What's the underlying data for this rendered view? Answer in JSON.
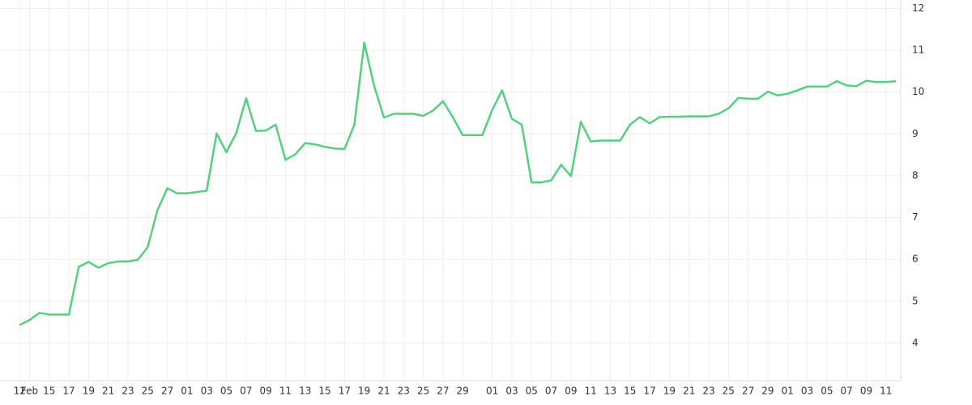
{
  "chart_data": {
    "type": "line",
    "x": [
      0,
      1,
      2,
      3,
      4,
      5,
      6,
      7,
      8,
      9,
      10,
      11,
      12,
      13,
      14,
      15,
      16,
      17,
      18,
      19,
      20,
      21,
      22,
      23,
      24,
      25,
      26,
      27,
      28,
      29,
      30,
      31,
      32,
      33,
      34,
      35,
      36,
      37,
      38,
      39,
      40,
      41,
      42,
      43,
      44,
      45,
      46,
      47,
      48,
      49,
      50,
      51,
      52,
      53,
      54,
      55,
      56,
      57,
      58,
      59,
      60,
      61,
      62,
      63,
      64,
      65,
      66,
      67,
      68,
      69,
      70,
      71,
      72,
      73,
      74,
      75,
      76,
      77,
      78,
      79,
      80,
      81,
      82,
      83,
      84,
      85,
      86,
      87,
      88,
      89
    ],
    "series": [
      {
        "color": "#55cf80",
        "values": [
          4.43,
          4.55,
          4.72,
          4.68,
          4.68,
          4.68,
          5.82,
          5.94,
          5.8,
          5.91,
          5.95,
          5.95,
          5.99,
          6.29,
          7.18,
          7.7,
          7.58,
          7.58,
          7.61,
          7.64,
          9.01,
          8.56,
          9.02,
          9.85,
          9.07,
          9.08,
          9.22,
          8.38,
          8.51,
          8.78,
          8.75,
          8.69,
          8.65,
          8.64,
          9.22,
          11.18,
          10.15,
          9.39,
          9.48,
          9.48,
          9.48,
          9.43,
          9.56,
          9.78,
          9.4,
          8.97,
          8.97,
          8.97,
          9.57,
          10.04,
          9.36,
          9.22,
          7.84,
          7.84,
          7.89,
          8.26,
          7.99,
          9.29,
          8.82,
          8.84,
          8.84,
          8.84,
          9.22,
          9.4,
          9.25,
          9.4,
          9.41,
          9.41,
          9.42,
          9.42,
          9.42,
          9.48,
          9.61,
          9.86,
          9.84,
          9.84,
          10.01,
          9.92,
          9.96,
          10.04,
          10.13,
          10.13,
          10.13,
          10.26,
          10.16,
          10.14,
          10.27,
          10.24,
          10.24,
          10.26
        ]
      }
    ],
    "xlim": [
      -2,
      89.5
    ],
    "xticks": [
      {
        "value": 0,
        "label": "12"
      },
      {
        "value": 1,
        "label": "Feb"
      },
      {
        "value": 3,
        "label": "15"
      },
      {
        "value": 5,
        "label": "17"
      },
      {
        "value": 7,
        "label": "19"
      },
      {
        "value": 9,
        "label": "21"
      },
      {
        "value": 11,
        "label": "23"
      },
      {
        "value": 13,
        "label": "25"
      },
      {
        "value": 15,
        "label": "27"
      },
      {
        "value": 17,
        "label": "01"
      },
      {
        "value": 19,
        "label": "03"
      },
      {
        "value": 21,
        "label": "05"
      },
      {
        "value": 23,
        "label": "07"
      },
      {
        "value": 25,
        "label": "09"
      },
      {
        "value": 27,
        "label": "11"
      },
      {
        "value": 29,
        "label": "13"
      },
      {
        "value": 31,
        "label": "15"
      },
      {
        "value": 33,
        "label": "17"
      },
      {
        "value": 35,
        "label": "19"
      },
      {
        "value": 37,
        "label": "21"
      },
      {
        "value": 39,
        "label": "23"
      },
      {
        "value": 41,
        "label": "25"
      },
      {
        "value": 43,
        "label": "27"
      },
      {
        "value": 45,
        "label": "29"
      },
      {
        "value": 48,
        "label": "01"
      },
      {
        "value": 50,
        "label": "03"
      },
      {
        "value": 52,
        "label": "05"
      },
      {
        "value": 54,
        "label": "07"
      },
      {
        "value": 56,
        "label": "09"
      },
      {
        "value": 58,
        "label": "11"
      },
      {
        "value": 60,
        "label": "13"
      },
      {
        "value": 62,
        "label": "15"
      },
      {
        "value": 64,
        "label": "17"
      },
      {
        "value": 66,
        "label": "19"
      },
      {
        "value": 68,
        "label": "21"
      },
      {
        "value": 70,
        "label": "23"
      },
      {
        "value": 72,
        "label": "25"
      },
      {
        "value": 74,
        "label": "27"
      },
      {
        "value": 76,
        "label": "29"
      },
      {
        "value": 78,
        "label": "01"
      },
      {
        "value": 80,
        "label": "03"
      },
      {
        "value": 82,
        "label": "05"
      },
      {
        "value": 84,
        "label": "07"
      },
      {
        "value": 86,
        "label": "09"
      },
      {
        "value": 88,
        "label": "11"
      }
    ],
    "ylim": [
      3.1,
      12.2
    ],
    "yticks": [
      4,
      5,
      6,
      7,
      8,
      9,
      10,
      11,
      12
    ],
    "grid": true
  }
}
